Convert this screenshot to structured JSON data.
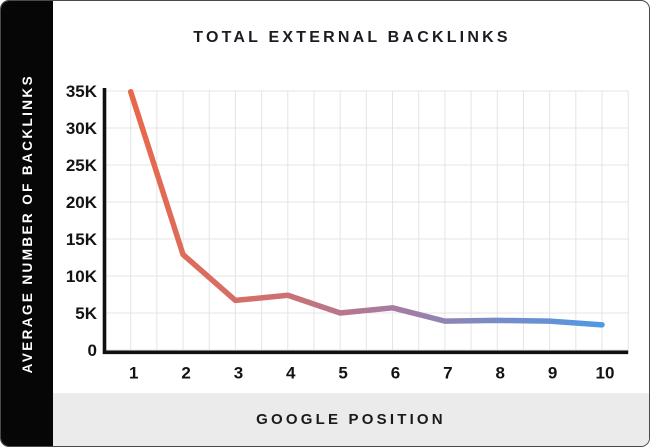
{
  "panel": {
    "title": "TOTAL EXTERNAL BACKLINKS",
    "y_axis_banner": "AVERAGE NUMBER OF BACKLINKS",
    "x_axis_banner": "GOOGLE POSITION"
  },
  "chart_data": {
    "type": "line",
    "title": "TOTAL EXTERNAL BACKLINKS",
    "xlabel": "GOOGLE POSITION",
    "ylabel": "AVERAGE NUMBER OF BACKLINKS",
    "x": [
      1,
      2,
      3,
      4,
      5,
      6,
      7,
      8,
      9,
      10
    ],
    "values": [
      34900,
      12900,
      6700,
      7400,
      5000,
      5700,
      3900,
      4000,
      3900,
      3400
    ],
    "ylim": [
      0,
      35000
    ],
    "y_tick_step": 5000,
    "y_tick_labels": [
      "0",
      "5K",
      "10K",
      "15K",
      "20K",
      "25K",
      "30K",
      "35K"
    ],
    "x_tick_labels": [
      "1",
      "2",
      "3",
      "4",
      "5",
      "6",
      "7",
      "8",
      "9",
      "10"
    ],
    "grid": true,
    "legend": "none",
    "line_width": 5.5,
    "line_gradient": [
      {
        "offset": 0.0,
        "color": "#e8684b"
      },
      {
        "offset": 0.3,
        "color": "#cf7070"
      },
      {
        "offset": 0.55,
        "color": "#a87b9f"
      },
      {
        "offset": 0.7,
        "color": "#8887ba"
      },
      {
        "offset": 1.0,
        "color": "#4e99e4"
      }
    ]
  },
  "colors": {
    "side_banner_bg": "#060606",
    "side_banner_text": "#ffffff",
    "footer_bg": "#ebebeb",
    "title_text": "#1b1b22",
    "axis_line": "#101010",
    "gridline": "#e4e4e4",
    "tick_text": "#131313"
  }
}
